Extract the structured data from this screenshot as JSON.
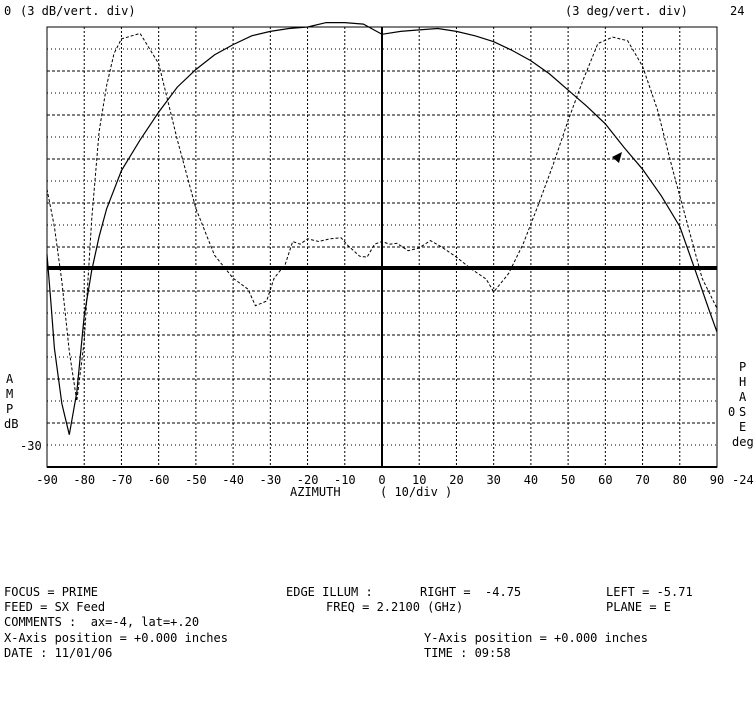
{
  "header": {
    "left_top": "0",
    "left_scale": "(3 dB/vert. div)",
    "right_scale": "(3 deg/vert. div)",
    "right_top": "24"
  },
  "left_axis": {
    "letters": [
      "A",
      "M",
      "P",
      "dB"
    ],
    "bottom": "-30"
  },
  "right_axis": {
    "letters": [
      "P",
      "H",
      "A",
      "S",
      "E",
      "deg"
    ],
    "zero": "0",
    "bottom": "-24"
  },
  "x_axis_label": "AZIMUTH",
  "x_axis_scale": "( 10/div )",
  "info": {
    "focus": "FOCUS = PRIME",
    "edge_illum": "EDGE ILLUM :",
    "right_illum": "RIGHT =  -4.75",
    "left_illum": "LEFT = -5.71",
    "feed": "FEED = SX Feed",
    "freq": "FREQ = 2.2100 (GHz)",
    "plane": "PLANE = E",
    "comments": "COMMENTS :  ax=-4, lat=+.20",
    "x_pos": "X-Axis position = +0.000 inches",
    "y_pos": "Y-Axis position = +0.000 inches",
    "date": "DATE : 11/01/06",
    "time": "TIME : 09:58"
  },
  "chart_data": {
    "type": "line",
    "title": "",
    "xlabel": "AZIMUTH ( 10/div )",
    "ylabel_left": "AMP dB",
    "ylabel_right": "PHASE deg",
    "xlim": [
      -90,
      90
    ],
    "ylim_left": [
      -30,
      0
    ],
    "ylim_right": [
      -24,
      24
    ],
    "x_ticks": [
      "-90",
      "-80",
      "-70",
      "-60",
      "-50",
      "-40",
      "-30",
      "-20",
      "-10",
      "0",
      "10",
      "20",
      "30",
      "40",
      "50",
      "60",
      "70",
      "80",
      "90"
    ],
    "grid": true,
    "series": [
      {
        "axis": "left",
        "style": "solid",
        "x": [
          -90,
          -89,
          -88,
          -86,
          -84,
          -82,
          -80,
          -78,
          -76,
          -74,
          -72,
          -70,
          -65,
          -60,
          -55,
          -50,
          -45,
          -40,
          -35,
          -30,
          -25,
          -20,
          -15,
          -10,
          -5,
          0,
          5,
          10,
          15,
          20,
          25,
          30,
          35,
          40,
          45,
          50,
          55,
          60,
          65,
          70,
          75,
          80,
          85,
          88,
          90
        ],
        "y": [
          -15.5,
          -18.6,
          -21.9,
          -25.7,
          -27.8,
          -24.9,
          -19.7,
          -16.6,
          -14.3,
          -12.4,
          -11.1,
          -9.8,
          -7.7,
          -5.8,
          -4.1,
          -2.9,
          -1.9,
          -1.2,
          -0.6,
          -0.3,
          -0.1,
          0,
          0.3,
          0.3,
          0.2,
          -0.5,
          -0.3,
          -0.2,
          -0.1,
          -0.3,
          -0.6,
          -1.0,
          -1.6,
          -2.3,
          -3.2,
          -4.3,
          -5.4,
          -6.6,
          -8.2,
          -9.7,
          -11.5,
          -13.6,
          -17.2,
          -19.4,
          -20.8
        ]
      },
      {
        "axis": "right",
        "style": "dashed",
        "x": [
          -90,
          -88,
          -86,
          -84,
          -82,
          -80,
          -78,
          -76,
          -74,
          -72,
          -70,
          -65,
          -60,
          -55,
          -50,
          -45,
          -40,
          -36,
          -34,
          -31,
          -29,
          -26,
          -24,
          -22,
          -20,
          -17,
          -14,
          -11,
          -9,
          -6,
          -4,
          -2,
          0,
          2,
          4,
          7,
          10,
          13,
          16,
          20,
          24,
          28,
          30,
          34,
          38,
          42,
          46,
          50,
          54,
          58,
          62,
          66,
          70,
          74,
          78,
          82,
          86,
          90
        ],
        "y": [
          6.3,
          2.2,
          -3.8,
          -11.4,
          -16.8,
          -10.3,
          3.0,
          12.6,
          17.6,
          21.1,
          22.7,
          23.3,
          20.0,
          11.7,
          4.2,
          -0.9,
          -3.4,
          -4.6,
          -6.4,
          -5.9,
          -3.4,
          -1.9,
          0.6,
          0.3,
          0.9,
          0.6,
          0.9,
          1.0,
          0.1,
          -1.0,
          -1.1,
          0.3,
          0.6,
          0.3,
          0.4,
          -0.4,
          -0.1,
          0.7,
          0.0,
          -1.1,
          -2.4,
          -3.5,
          -4.9,
          -2.9,
          0.4,
          4.6,
          9.0,
          13.8,
          18.2,
          22.2,
          22.9,
          22.5,
          19.7,
          15.0,
          8.6,
          2.6,
          -3.4,
          -6.7
        ]
      }
    ]
  }
}
